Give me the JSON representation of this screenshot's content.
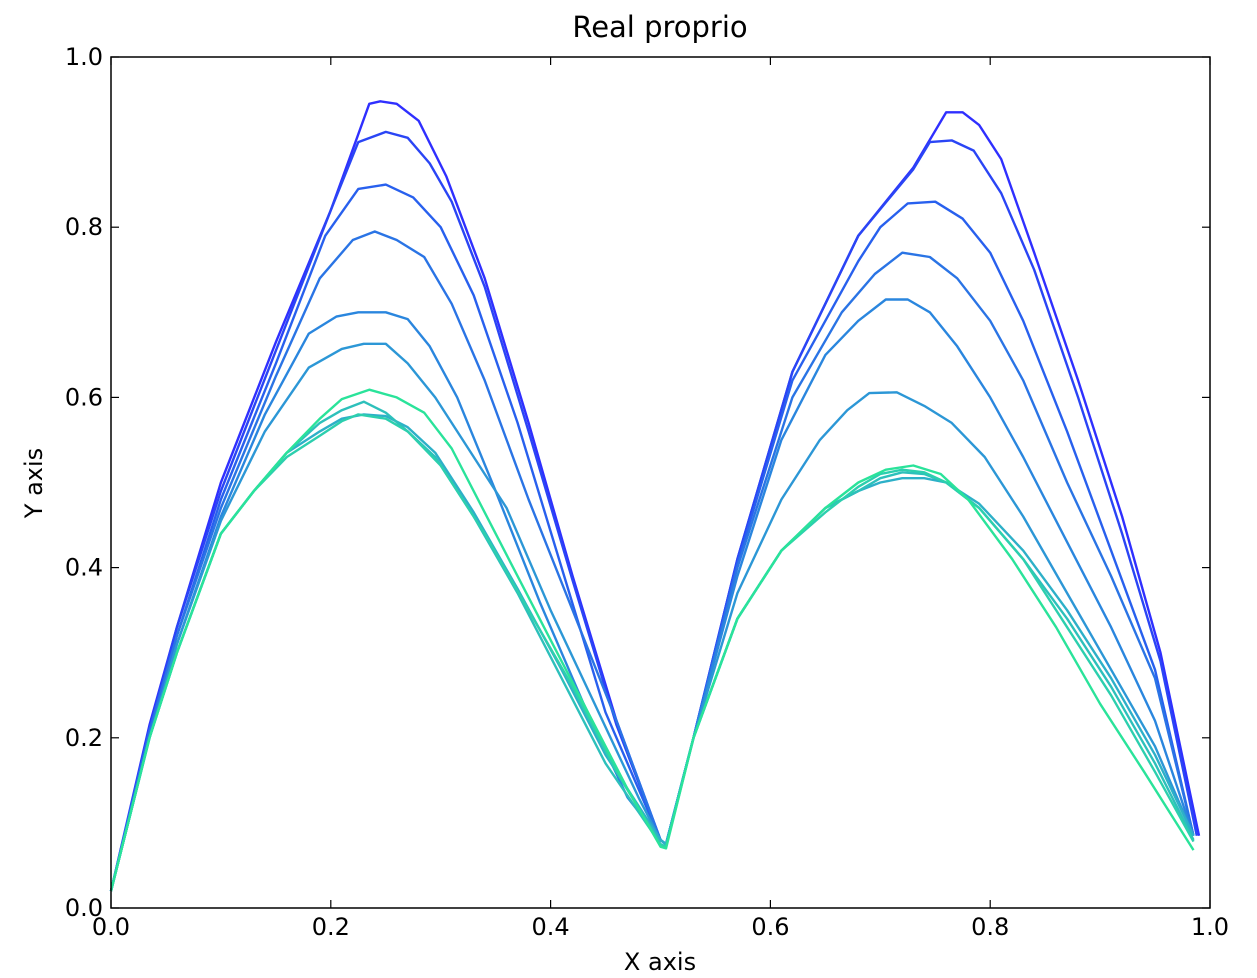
{
  "chart_data": {
    "type": "line",
    "title": "Real proprio",
    "xlabel": "X axis",
    "ylabel": "Y axis",
    "xlim": [
      0.0,
      1.0
    ],
    "ylim": [
      0.0,
      1.0
    ],
    "xticks": [
      "0.0",
      "0.2",
      "0.4",
      "0.6",
      "0.8",
      "1.0"
    ],
    "yticks": [
      "0.0",
      "0.2",
      "0.4",
      "0.6",
      "0.8",
      "1.0"
    ],
    "grid": false,
    "legend": "none",
    "series": [
      {
        "color": "#2f2fff",
        "x": [
          0.0,
          0.035,
          0.06,
          0.1,
          0.15,
          0.2,
          0.235,
          0.245,
          0.26,
          0.28,
          0.305,
          0.34,
          0.38,
          0.42,
          0.46,
          0.5,
          0.505,
          0.53,
          0.57,
          0.62,
          0.68,
          0.73,
          0.76,
          0.775,
          0.79,
          0.81,
          0.84,
          0.88,
          0.92,
          0.955,
          0.99
        ],
        "y": [
          0.02,
          0.215,
          0.33,
          0.5,
          0.665,
          0.82,
          0.945,
          0.948,
          0.945,
          0.925,
          0.86,
          0.74,
          0.57,
          0.39,
          0.22,
          0.08,
          0.075,
          0.2,
          0.41,
          0.63,
          0.79,
          0.87,
          0.935,
          0.935,
          0.92,
          0.88,
          0.77,
          0.62,
          0.46,
          0.3,
          0.085
        ]
      },
      {
        "color": "#2a45f5",
        "x": [
          0.0,
          0.035,
          0.06,
          0.1,
          0.15,
          0.2,
          0.225,
          0.25,
          0.27,
          0.29,
          0.31,
          0.34,
          0.38,
          0.42,
          0.46,
          0.5,
          0.505,
          0.53,
          0.57,
          0.62,
          0.68,
          0.73,
          0.745,
          0.765,
          0.785,
          0.81,
          0.84,
          0.88,
          0.92,
          0.955,
          0.988
        ],
        "y": [
          0.02,
          0.21,
          0.33,
          0.49,
          0.655,
          0.82,
          0.9,
          0.912,
          0.905,
          0.875,
          0.83,
          0.73,
          0.56,
          0.385,
          0.215,
          0.08,
          0.075,
          0.2,
          0.41,
          0.63,
          0.79,
          0.868,
          0.9,
          0.902,
          0.89,
          0.84,
          0.75,
          0.6,
          0.44,
          0.29,
          0.085
        ]
      },
      {
        "color": "#2860ee",
        "x": [
          0.0,
          0.035,
          0.06,
          0.1,
          0.15,
          0.195,
          0.225,
          0.25,
          0.275,
          0.3,
          0.33,
          0.37,
          0.41,
          0.45,
          0.5,
          0.505,
          0.53,
          0.57,
          0.62,
          0.68,
          0.7,
          0.725,
          0.75,
          0.775,
          0.8,
          0.83,
          0.87,
          0.91,
          0.95,
          0.985
        ],
        "y": [
          0.02,
          0.21,
          0.32,
          0.48,
          0.64,
          0.79,
          0.845,
          0.85,
          0.835,
          0.8,
          0.72,
          0.57,
          0.4,
          0.23,
          0.08,
          0.075,
          0.2,
          0.405,
          0.62,
          0.76,
          0.8,
          0.828,
          0.83,
          0.81,
          0.77,
          0.69,
          0.56,
          0.42,
          0.28,
          0.085
        ]
      },
      {
        "color": "#2a74e5",
        "x": [
          0.0,
          0.035,
          0.06,
          0.1,
          0.15,
          0.19,
          0.22,
          0.24,
          0.26,
          0.285,
          0.31,
          0.34,
          0.38,
          0.42,
          0.46,
          0.5,
          0.505,
          0.53,
          0.57,
          0.62,
          0.665,
          0.695,
          0.72,
          0.745,
          0.77,
          0.8,
          0.83,
          0.87,
          0.91,
          0.95,
          0.985
        ],
        "y": [
          0.02,
          0.205,
          0.32,
          0.47,
          0.625,
          0.74,
          0.785,
          0.795,
          0.785,
          0.765,
          0.71,
          0.62,
          0.48,
          0.35,
          0.22,
          0.08,
          0.075,
          0.2,
          0.4,
          0.6,
          0.7,
          0.745,
          0.77,
          0.765,
          0.74,
          0.69,
          0.62,
          0.5,
          0.39,
          0.27,
          0.085
        ]
      },
      {
        "color": "#2a86de",
        "x": [
          0.0,
          0.035,
          0.06,
          0.1,
          0.14,
          0.18,
          0.205,
          0.225,
          0.25,
          0.27,
          0.29,
          0.315,
          0.35,
          0.39,
          0.43,
          0.47,
          0.5,
          0.505,
          0.53,
          0.57,
          0.61,
          0.65,
          0.68,
          0.705,
          0.725,
          0.745,
          0.77,
          0.8,
          0.83,
          0.87,
          0.91,
          0.95,
          0.985
        ],
        "y": [
          0.02,
          0.2,
          0.31,
          0.46,
          0.58,
          0.675,
          0.695,
          0.7,
          0.7,
          0.692,
          0.66,
          0.6,
          0.49,
          0.36,
          0.24,
          0.13,
          0.08,
          0.075,
          0.2,
          0.39,
          0.55,
          0.65,
          0.69,
          0.715,
          0.715,
          0.7,
          0.66,
          0.6,
          0.53,
          0.43,
          0.33,
          0.22,
          0.085
        ]
      },
      {
        "color": "#2c97d6",
        "x": [
          0.0,
          0.035,
          0.06,
          0.1,
          0.14,
          0.18,
          0.21,
          0.23,
          0.25,
          0.27,
          0.295,
          0.32,
          0.36,
          0.4,
          0.44,
          0.48,
          0.5,
          0.505,
          0.53,
          0.57,
          0.61,
          0.645,
          0.67,
          0.69,
          0.715,
          0.74,
          0.765,
          0.795,
          0.83,
          0.87,
          0.91,
          0.95,
          0.985
        ],
        "y": [
          0.02,
          0.2,
          0.31,
          0.455,
          0.56,
          0.635,
          0.657,
          0.663,
          0.663,
          0.64,
          0.6,
          0.55,
          0.47,
          0.35,
          0.24,
          0.13,
          0.08,
          0.075,
          0.2,
          0.37,
          0.48,
          0.55,
          0.585,
          0.605,
          0.606,
          0.59,
          0.57,
          0.53,
          0.46,
          0.37,
          0.28,
          0.19,
          0.085
        ]
      },
      {
        "color": "#2db0c8",
        "x": [
          0.0,
          0.035,
          0.06,
          0.1,
          0.13,
          0.16,
          0.19,
          0.21,
          0.23,
          0.25,
          0.27,
          0.295,
          0.33,
          0.37,
          0.41,
          0.45,
          0.5,
          0.505,
          0.53,
          0.57,
          0.61,
          0.65,
          0.68,
          0.7,
          0.72,
          0.74,
          0.76,
          0.79,
          0.83,
          0.87,
          0.91,
          0.95,
          0.985
        ],
        "y": [
          0.02,
          0.2,
          0.3,
          0.44,
          0.49,
          0.535,
          0.56,
          0.575,
          0.58,
          0.578,
          0.565,
          0.535,
          0.465,
          0.375,
          0.28,
          0.18,
          0.08,
          0.075,
          0.2,
          0.34,
          0.42,
          0.47,
          0.49,
          0.5,
          0.505,
          0.505,
          0.5,
          0.475,
          0.42,
          0.35,
          0.27,
          0.18,
          0.085
        ]
      },
      {
        "color": "#2dc0bb",
        "x": [
          0.0,
          0.035,
          0.06,
          0.1,
          0.13,
          0.16,
          0.19,
          0.21,
          0.23,
          0.25,
          0.27,
          0.295,
          0.33,
          0.37,
          0.41,
          0.45,
          0.5,
          0.505,
          0.53,
          0.57,
          0.61,
          0.65,
          0.68,
          0.7,
          0.72,
          0.74,
          0.76,
          0.79,
          0.83,
          0.87,
          0.91,
          0.95,
          0.985
        ],
        "y": [
          0.02,
          0.2,
          0.3,
          0.44,
          0.49,
          0.535,
          0.57,
          0.585,
          0.595,
          0.582,
          0.56,
          0.53,
          0.46,
          0.37,
          0.27,
          0.17,
          0.075,
          0.072,
          0.2,
          0.34,
          0.42,
          0.47,
          0.49,
          0.505,
          0.512,
          0.51,
          0.5,
          0.47,
          0.41,
          0.34,
          0.26,
          0.17,
          0.08
        ]
      },
      {
        "color": "#2ccfae",
        "x": [
          0.0,
          0.035,
          0.06,
          0.1,
          0.13,
          0.16,
          0.19,
          0.21,
          0.225,
          0.25,
          0.27,
          0.3,
          0.34,
          0.38,
          0.42,
          0.46,
          0.5,
          0.505,
          0.53,
          0.57,
          0.61,
          0.65,
          0.68,
          0.7,
          0.72,
          0.74,
          0.76,
          0.79,
          0.83,
          0.87,
          0.91,
          0.95,
          0.985
        ],
        "y": [
          0.02,
          0.2,
          0.3,
          0.44,
          0.49,
          0.53,
          0.555,
          0.572,
          0.58,
          0.575,
          0.56,
          0.52,
          0.44,
          0.35,
          0.26,
          0.16,
          0.075,
          0.072,
          0.2,
          0.34,
          0.42,
          0.465,
          0.495,
          0.51,
          0.515,
          0.512,
          0.5,
          0.47,
          0.41,
          0.33,
          0.25,
          0.16,
          0.078
        ]
      },
      {
        "color": "#2ae39a",
        "x": [
          0.0,
          0.035,
          0.06,
          0.1,
          0.13,
          0.16,
          0.19,
          0.21,
          0.235,
          0.26,
          0.285,
          0.31,
          0.35,
          0.39,
          0.43,
          0.47,
          0.5,
          0.505,
          0.53,
          0.57,
          0.61,
          0.65,
          0.68,
          0.705,
          0.73,
          0.755,
          0.78,
          0.82,
          0.86,
          0.9,
          0.94,
          0.985
        ],
        "y": [
          0.02,
          0.2,
          0.3,
          0.44,
          0.49,
          0.535,
          0.575,
          0.598,
          0.609,
          0.6,
          0.582,
          0.54,
          0.44,
          0.34,
          0.24,
          0.14,
          0.072,
          0.07,
          0.2,
          0.34,
          0.42,
          0.47,
          0.5,
          0.515,
          0.52,
          0.51,
          0.48,
          0.41,
          0.33,
          0.24,
          0.16,
          0.068
        ]
      }
    ]
  }
}
